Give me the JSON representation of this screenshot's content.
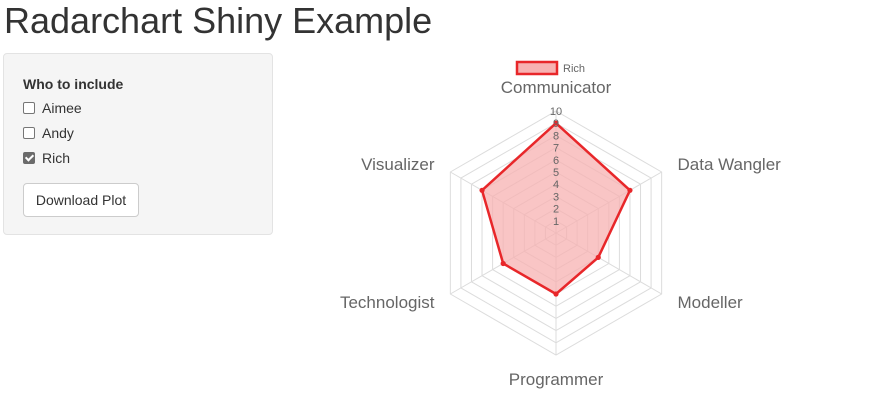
{
  "app": {
    "title": "Radarchart Shiny Example"
  },
  "sidebar": {
    "filter_label": "Who to include",
    "options": [
      {
        "label": "Aimee",
        "checked": false
      },
      {
        "label": "Andy",
        "checked": false
      },
      {
        "label": "Rich",
        "checked": true
      }
    ],
    "download_label": "Download Plot"
  },
  "chart_data": {
    "type": "radar",
    "axes": [
      "Communicator",
      "Data Wangler",
      "Modeller",
      "Programmer",
      "Technologist",
      "Visualizer"
    ],
    "ticks": [
      "1",
      "2",
      "3",
      "4",
      "5",
      "6",
      "7",
      "8",
      "9",
      "10"
    ],
    "rlim": [
      0,
      10
    ],
    "legend": "top",
    "series": [
      {
        "name": "Rich",
        "values": [
          9,
          7,
          4,
          5,
          5,
          7
        ],
        "color": "#e8272a",
        "fill": "#f7b2b2"
      }
    ]
  }
}
